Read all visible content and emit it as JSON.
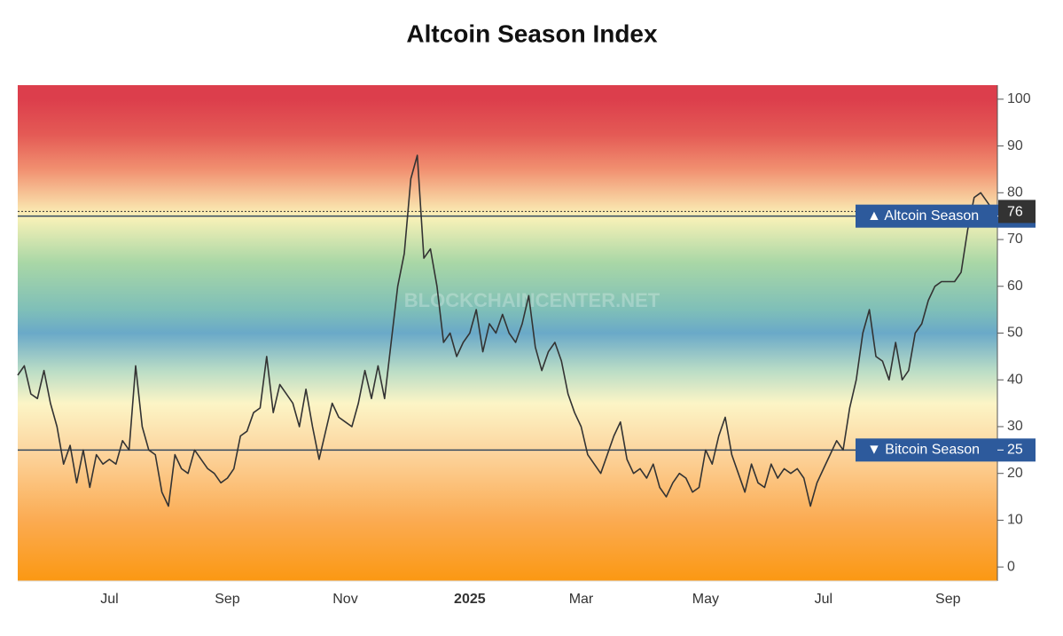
{
  "chart_data": {
    "type": "line",
    "title": "Altcoin Season Index",
    "watermark": "BLOCKCHAINCENTER.NET",
    "color": "#333333",
    "categories": [
      null,
      null,
      null,
      null,
      null,
      null,
      null,
      null,
      null,
      null,
      null,
      null,
      null,
      null,
      "Jul",
      null,
      null,
      null,
      null,
      null,
      null,
      null,
      null,
      null,
      null,
      null,
      null,
      null,
      null,
      null,
      null,
      null,
      "Sep",
      null,
      null,
      null,
      null,
      null,
      null,
      null,
      null,
      null,
      null,
      null,
      null,
      null,
      null,
      null,
      null,
      null,
      "Nov",
      null,
      null,
      null,
      null,
      null,
      null,
      null,
      null,
      null,
      null,
      null,
      null,
      null,
      null,
      null,
      null,
      null,
      null,
      "2025",
      null,
      null,
      null,
      null,
      null,
      null,
      null,
      null,
      null,
      null,
      null,
      null,
      null,
      null,
      null,
      null,
      "Mar",
      null,
      null,
      null,
      null,
      null,
      null,
      null,
      null,
      null,
      null,
      null,
      null,
      null,
      null,
      null,
      null,
      null,
      null,
      "May",
      null,
      null,
      null,
      null,
      null,
      null,
      null,
      null,
      null,
      null,
      null,
      null,
      null,
      null,
      null,
      null,
      null,
      "Jul",
      null,
      null,
      null,
      null,
      null,
      null,
      null,
      null,
      null,
      null,
      null,
      null,
      null,
      null,
      null,
      null,
      null,
      null,
      "Sep",
      null,
      null,
      null,
      null,
      null,
      null,
      null
    ],
    "values": [
      41,
      43,
      37,
      36,
      42,
      35,
      30,
      22,
      26,
      18,
      25,
      17,
      24,
      22,
      23,
      22,
      27,
      25,
      43,
      30,
      25,
      24,
      16,
      13,
      24,
      21,
      20,
      25,
      23,
      21,
      20,
      18,
      19,
      21,
      28,
      29,
      33,
      34,
      45,
      33,
      39,
      37,
      35,
      30,
      38,
      30,
      23,
      29,
      35,
      32,
      31,
      30,
      35,
      42,
      36,
      43,
      36,
      48,
      60,
      67,
      83,
      88,
      66,
      68,
      60,
      48,
      50,
      45,
      48,
      50,
      55,
      46,
      52,
      50,
      54,
      50,
      48,
      52,
      58,
      47,
      42,
      46,
      48,
      44,
      37,
      33,
      30,
      24,
      22,
      20,
      24,
      28,
      31,
      23,
      20,
      21,
      19,
      22,
      17,
      15,
      18,
      20,
      19,
      16,
      17,
      25,
      22,
      28,
      32,
      24,
      20,
      16,
      22,
      18,
      17,
      22,
      19,
      21,
      20,
      21,
      19,
      13,
      18,
      21,
      24,
      27,
      25,
      34,
      40,
      50,
      55,
      45,
      44,
      40,
      48,
      40,
      42,
      50,
      52,
      57,
      60,
      61,
      61,
      61,
      63,
      72,
      79,
      80,
      78,
      76
    ],
    "current_value": 76,
    "thresholds": [
      {
        "label": "▲ Altcoin Season",
        "value": 75
      },
      {
        "label": "▼ Bitcoin Season",
        "value": 25
      }
    ],
    "ylim": [
      -3,
      103
    ],
    "yticks": [
      0,
      10,
      20,
      30,
      40,
      50,
      60,
      70,
      80,
      90,
      100
    ]
  }
}
